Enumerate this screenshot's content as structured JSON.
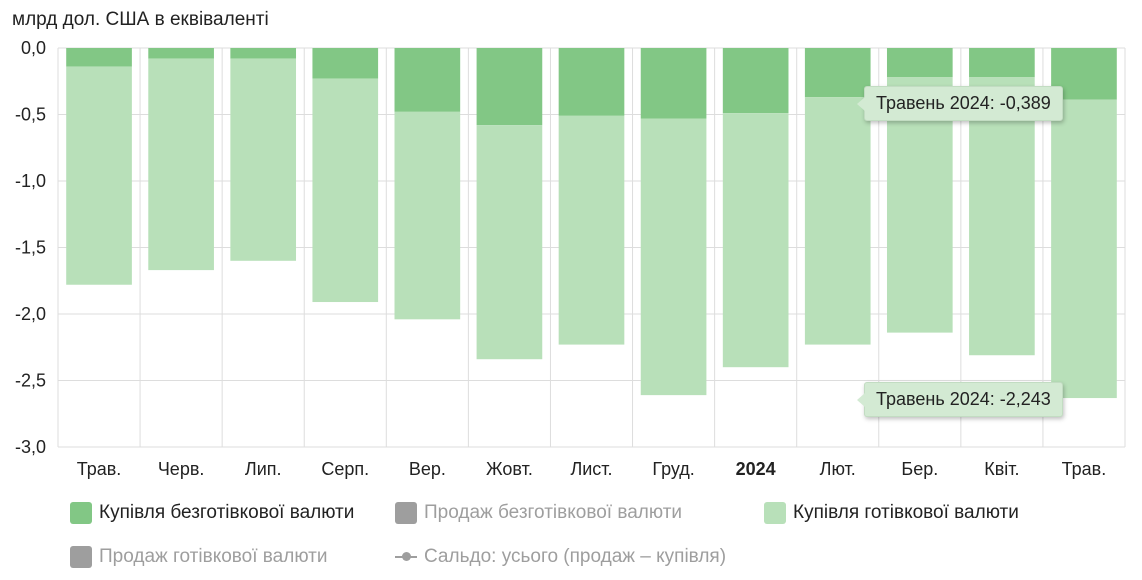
{
  "unit_label": "млрд дол. США в еквіваленті",
  "colors": {
    "noncash_buy": "#82c785",
    "cash_buy": "#b8e0b9",
    "inactive": "#9e9e9e",
    "grid": "#dddddd",
    "tooltip_bg": "#d3ead3"
  },
  "legend": [
    {
      "label": "Купівля безготівкової валюти",
      "color": "#82c785",
      "active": true
    },
    {
      "label": "Продаж безготівкової валюти",
      "color": "#9e9e9e",
      "active": false
    },
    {
      "label": "Купівля готівкової валюти",
      "color": "#b8e0b9",
      "active": true
    },
    {
      "label": "Продаж готівкової валюти",
      "color": "#9e9e9e",
      "active": false
    },
    {
      "label": "Сальдо: усього (продаж – купівля)",
      "color": "#9e9e9e",
      "active": false,
      "marker": "line"
    }
  ],
  "tooltips": [
    {
      "text": "Травень 2024: -0,389"
    },
    {
      "text": "Травень 2024: -2,243"
    }
  ],
  "chart_data": {
    "type": "bar",
    "stacked": true,
    "categories": [
      "Трав.",
      "Черв.",
      "Лип.",
      "Серп.",
      "Вер.",
      "Жовт.",
      "Лист.",
      "Груд.",
      "2024",
      "Лют.",
      "Бер.",
      "Квіт.",
      "Трав."
    ],
    "bold_categories": [
      "2024"
    ],
    "series": [
      {
        "name": "Купівля безготівкової валюти",
        "values": [
          -0.14,
          -0.08,
          -0.08,
          -0.23,
          -0.48,
          -0.58,
          -0.51,
          -0.53,
          -0.49,
          -0.37,
          -0.22,
          -0.22,
          -0.389
        ]
      },
      {
        "name": "Купівля готівкової валюти",
        "values": [
          -1.64,
          -1.59,
          -1.52,
          -1.68,
          -1.56,
          -1.76,
          -1.72,
          -2.08,
          -1.91,
          -1.86,
          -1.92,
          -2.09,
          -2.243
        ]
      }
    ],
    "ylim": [
      -3.0,
      0.0
    ],
    "yticks": [
      "0,0",
      "-0,5",
      "-1,0",
      "-1,5",
      "-2,0",
      "-2,5",
      "-3,0"
    ],
    "ytick_values": [
      0,
      -0.5,
      -1.0,
      -1.5,
      -2.0,
      -2.5,
      -3.0
    ],
    "grid": true,
    "legend_position": "bottom"
  }
}
